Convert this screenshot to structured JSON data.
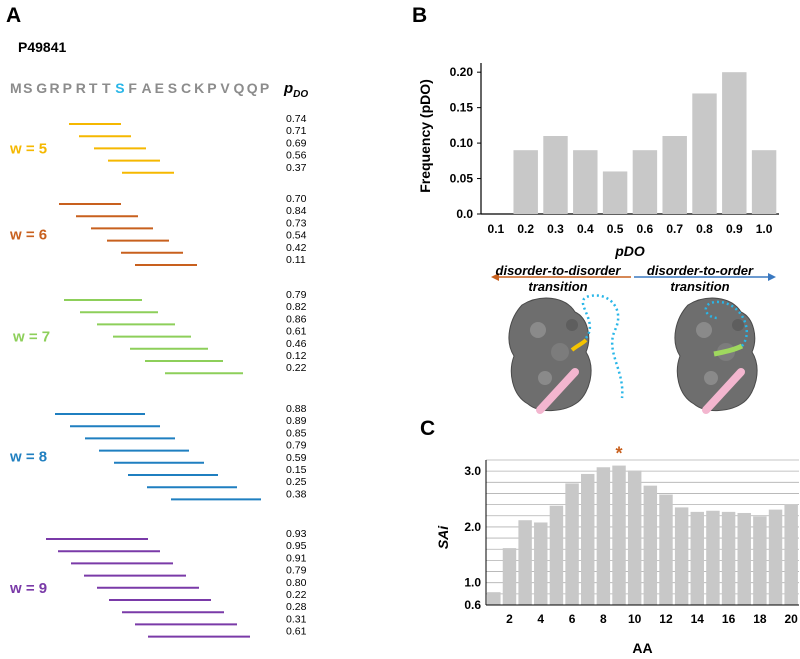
{
  "panels": {
    "a": "A",
    "b": "B",
    "c": "C"
  },
  "panel_a": {
    "protein_id": "P49841",
    "sequence": [
      "M",
      "S",
      "G",
      "R",
      "P",
      "R",
      "T",
      "T",
      "S",
      "F",
      "A",
      "E",
      "S",
      "C",
      "K",
      "P",
      "V",
      "Q",
      "Q",
      "P"
    ],
    "highlight_index": 8,
    "pdo_label": "p",
    "pdo_sub": "DO",
    "groups": [
      {
        "label": "w = 5",
        "color": "#f5b800",
        "values": [
          "0.74",
          "0.71",
          "0.69",
          "0.56",
          "0.37"
        ]
      },
      {
        "label": "w = 6",
        "color": "#c8601e",
        "values": [
          "0.70",
          "0.84",
          "0.73",
          "0.54",
          "0.42",
          "0.11"
        ]
      },
      {
        "label": "w = 7",
        "color": "#8dcf5a",
        "values": [
          "0.79",
          "0.82",
          "0.86",
          "0.61",
          "0.46",
          "0.12",
          "0.22"
        ]
      },
      {
        "label": "w = 8",
        "color": "#1f7fc0",
        "values": [
          "0.88",
          "0.89",
          "0.85",
          "0.79",
          "0.59",
          "0.15",
          "0.25",
          "0.38"
        ]
      },
      {
        "label": "w = 9",
        "color": "#7a3aa8",
        "values": [
          "0.93",
          "0.95",
          "0.91",
          "0.79",
          "0.80",
          "0.22",
          "0.28",
          "0.31",
          "0.61"
        ]
      }
    ]
  },
  "chart_data": [
    {
      "type": "bar",
      "ylabel": "Frequency (pDO)",
      "xlabel": "pDO",
      "categories": [
        "0.1",
        "0.2",
        "0.3",
        "0.4",
        "0.5",
        "0.6",
        "0.7",
        "0.8",
        "0.9",
        "1.0"
      ],
      "values": [
        0,
        0.09,
        0.11,
        0.09,
        0.06,
        0.09,
        0.11,
        0.17,
        0.2,
        0.09
      ],
      "yticks": [
        "0.0",
        "0.05",
        "0.10",
        "0.15",
        "0.20"
      ],
      "ylim": [
        0,
        0.22
      ],
      "annotations": {
        "left_text_1": "disorder-to-disorder",
        "left_text_2": "transition",
        "right_text_1": "disorder-to-order",
        "right_text_2": "transition",
        "left_arrow_color": "#c8601e",
        "right_arrow_color": "#3a78c0"
      }
    },
    {
      "type": "bar",
      "ylabel": "SAi",
      "xlabel": "AA",
      "categories": [
        "1",
        "2",
        "3",
        "4",
        "5",
        "6",
        "7",
        "8",
        "9",
        "10",
        "11",
        "12",
        "13",
        "14",
        "15",
        "16",
        "17",
        "18",
        "19",
        "20"
      ],
      "values": [
        0.83,
        1.62,
        2.12,
        2.08,
        2.38,
        2.78,
        2.95,
        3.07,
        3.1,
        3.01,
        2.74,
        2.58,
        2.35,
        2.27,
        2.29,
        2.27,
        2.25,
        2.19,
        2.31,
        2.4
      ],
      "xticks": [
        "2",
        "4",
        "6",
        "8",
        "10",
        "12",
        "14",
        "16",
        "18",
        "20"
      ],
      "yticks": [
        "0.6",
        "1.0",
        "2.0",
        "3.0"
      ],
      "ylim": [
        0.6,
        3.2
      ],
      "star": "*",
      "star_index": 8,
      "star_color": "#c8601e"
    }
  ]
}
